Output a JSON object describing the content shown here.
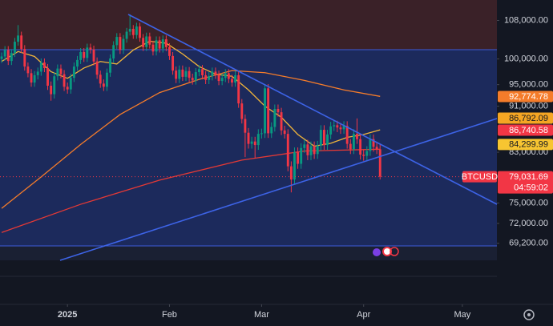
{
  "chart_data": {
    "type": "candlestick",
    "symbol": "BTCUSD",
    "countdown": "04:59:02",
    "log_scale": true,
    "grid": false,
    "up_color": "#089981",
    "down_color": "#f23645",
    "ylim": [
      66880,
      112500
    ],
    "yticks": [
      {
        "value": 108000,
        "label": "108,000.00"
      },
      {
        "value": 100000,
        "label": "100,000.00"
      },
      {
        "value": 95000,
        "label": "95,000.00"
      },
      {
        "value": 91000,
        "label": "91,000.00"
      },
      {
        "value": 83000,
        "label": "83,000.00"
      },
      {
        "value": 75000,
        "label": "75,000.00"
      },
      {
        "value": 72000,
        "label": "72,000.00"
      },
      {
        "value": 69200,
        "label": "69,200.00"
      }
    ],
    "xlim": [
      -0.5,
      150.5
    ],
    "xticks": [
      {
        "value": 20,
        "label": "2025"
      },
      {
        "value": 51,
        "label": "Feb"
      },
      {
        "value": 79,
        "label": "Mar"
      },
      {
        "value": 110,
        "label": "Apr"
      },
      {
        "value": 140,
        "label": "May"
      }
    ],
    "open": [
      100000,
      100500,
      101800,
      99600,
      101200,
      103500,
      104800,
      102000,
      98500,
      97200,
      95400,
      96800,
      97500,
      99300,
      98200,
      94800,
      93200,
      96600,
      98100,
      97000,
      94600,
      94100,
      96300,
      98500,
      99800,
      101400,
      100200,
      102300,
      101900,
      99500,
      96900,
      95200,
      94600,
      97300,
      100100,
      102800,
      104500,
      101800,
      104100,
      105600,
      106200,
      104900,
      106700,
      104300,
      102400,
      104600,
      102900,
      101500,
      103800,
      102100,
      104000,
      102400,
      100600,
      97700,
      96100,
      97900,
      96500,
      97600,
      96300,
      95800,
      97400,
      98000,
      96800,
      95900,
      96600,
      97500,
      96900,
      95700,
      96300,
      97200,
      96100,
      95400,
      96800,
      91500,
      88700,
      86300,
      84400,
      84800,
      84200,
      86100,
      86200,
      94300,
      86200,
      87300,
      90500,
      89900,
      86700,
      86100,
      80700,
      78600,
      83000,
      81100,
      83700,
      84300,
      82500,
      84000,
      82700,
      84100,
      86800,
      84200,
      86000,
      87400,
      87600,
      87200,
      86900,
      87500,
      84400,
      83500,
      86100,
      85200,
      82600,
      82400,
      83200,
      85200,
      83900,
      83500
    ],
    "high": [
      101300,
      102600,
      102600,
      102000,
      104300,
      107000,
      105600,
      102800,
      99300,
      98000,
      97600,
      98300,
      100100,
      100100,
      99000,
      95600,
      97400,
      98900,
      98900,
      97800,
      95400,
      97100,
      99300,
      100600,
      102200,
      102200,
      103100,
      103100,
      102700,
      100300,
      97700,
      96000,
      98100,
      100900,
      103600,
      105300,
      105300,
      104900,
      106400,
      109300,
      107000,
      107500,
      107500,
      105100,
      105400,
      105400,
      103700,
      104600,
      104600,
      104800,
      104800,
      103200,
      101400,
      98500,
      98700,
      98700,
      98400,
      98400,
      97100,
      98200,
      98800,
      98800,
      97600,
      97400,
      98300,
      98300,
      97700,
      97100,
      98000,
      98000,
      96900,
      97600,
      97600,
      92300,
      89500,
      87100,
      85600,
      85600,
      86900,
      87000,
      95000,
      95100,
      88100,
      91300,
      91300,
      90700,
      87500,
      86900,
      81500,
      83800,
      83800,
      84500,
      85100,
      85100,
      84800,
      84800,
      84900,
      87600,
      87600,
      86800,
      88200,
      88400,
      88400,
      88000,
      88300,
      88300,
      85200,
      86900,
      88800,
      86000,
      83400,
      84000,
      86000,
      86000,
      84700,
      84300
    ],
    "low": [
      99200,
      99700,
      98800,
      98800,
      100400,
      102700,
      101200,
      97700,
      96400,
      94600,
      94600,
      96000,
      96700,
      97400,
      94000,
      92000,
      92400,
      95800,
      96200,
      93800,
      93300,
      93300,
      95500,
      97700,
      99000,
      99400,
      99400,
      101100,
      98700,
      96100,
      94400,
      93800,
      93800,
      96500,
      99300,
      102000,
      101000,
      101000,
      103300,
      104800,
      104100,
      104100,
      103500,
      101600,
      101600,
      102100,
      100700,
      100700,
      101300,
      101300,
      101600,
      99800,
      96900,
      95300,
      95300,
      95700,
      95700,
      95500,
      95000,
      95000,
      96600,
      96000,
      95100,
      95100,
      95800,
      96100,
      94900,
      94900,
      95500,
      95300,
      94600,
      94600,
      90700,
      87900,
      82200,
      83600,
      83600,
      82000,
      83400,
      85300,
      85400,
      85400,
      85400,
      86500,
      89100,
      85900,
      85300,
      79900,
      76600,
      77800,
      80300,
      80300,
      82900,
      81700,
      81700,
      81900,
      81900,
      83300,
      83400,
      83400,
      85200,
      86600,
      86400,
      86100,
      86100,
      83600,
      82700,
      82700,
      84400,
      81800,
      81600,
      81600,
      82400,
      83100,
      82700,
      78600
    ],
    "close": [
      100500,
      101800,
      99600,
      101200,
      103500,
      104800,
      102000,
      98500,
      97200,
      95400,
      96800,
      97500,
      99300,
      98200,
      94800,
      93200,
      96600,
      98100,
      97000,
      94600,
      94100,
      96300,
      98500,
      99800,
      101400,
      100200,
      102300,
      101900,
      99500,
      96900,
      95200,
      94600,
      97300,
      100100,
      102800,
      104500,
      101800,
      104100,
      105600,
      106200,
      104900,
      106700,
      104300,
      102400,
      104600,
      102900,
      101500,
      103800,
      102100,
      104000,
      102400,
      100600,
      97700,
      96100,
      97900,
      96500,
      97600,
      96300,
      95800,
      97400,
      98000,
      96800,
      95900,
      96600,
      97500,
      96900,
      95700,
      96300,
      97200,
      96100,
      95400,
      96800,
      91500,
      88700,
      86300,
      84400,
      84800,
      84200,
      86100,
      86200,
      94300,
      86200,
      87300,
      90500,
      89900,
      86700,
      86100,
      80700,
      78600,
      83000,
      81100,
      83700,
      84300,
      82500,
      84000,
      82700,
      84100,
      86800,
      84200,
      86000,
      87400,
      87600,
      87200,
      86900,
      87500,
      84400,
      83500,
      86100,
      85200,
      82600,
      82400,
      83200,
      85200,
      83900,
      83500,
      79031.69
    ],
    "moving_averages": [
      {
        "color": "#f0b43a",
        "x": [
          0,
          5,
          10,
          15,
          20,
          25,
          30,
          35,
          40,
          45,
          50,
          55,
          60,
          65,
          70,
          75,
          80,
          85,
          90,
          95,
          100,
          105,
          110,
          115
        ],
        "values": [
          99500,
          101500,
          100500,
          97500,
          96200,
          98200,
          99500,
          99000,
          101800,
          103600,
          103200,
          101000,
          98500,
          97000,
          96600,
          94000,
          91000,
          89000,
          86000,
          84000,
          84500,
          85500,
          86000,
          86800
        ]
      },
      {
        "color": "#f57c2a",
        "x": [
          0,
          12,
          24,
          36,
          48,
          60,
          70,
          80,
          92,
          104,
          115
        ],
        "values": [
          74200,
          79000,
          84300,
          89500,
          93500,
          96000,
          97700,
          97300,
          95800,
          94000,
          92800
        ]
      },
      {
        "color": "#e53935",
        "x": [
          0,
          24,
          48,
          73,
          92,
          115
        ],
        "values": [
          70700,
          74800,
          78500,
          81700,
          83200,
          83500
        ]
      }
    ],
    "price_labels": [
      {
        "value": 92774.78,
        "label": "92,774.78",
        "color": "#f57c2a",
        "text_color": "#ffffff"
      },
      {
        "value": 86792.09,
        "label": "86,792.09",
        "color": "#f5a623",
        "text_color": "#131722"
      },
      {
        "value": 86740.58,
        "label": "86,740.58",
        "color": "#f23645",
        "text_color": "#ffffff"
      },
      {
        "value": 84299.99,
        "label": "84,299.99",
        "color": "#f7c531",
        "text_color": "#131722"
      }
    ],
    "last_price": {
      "value": 79031.69,
      "label": "79,031.69",
      "color": "#f23645"
    }
  }
}
